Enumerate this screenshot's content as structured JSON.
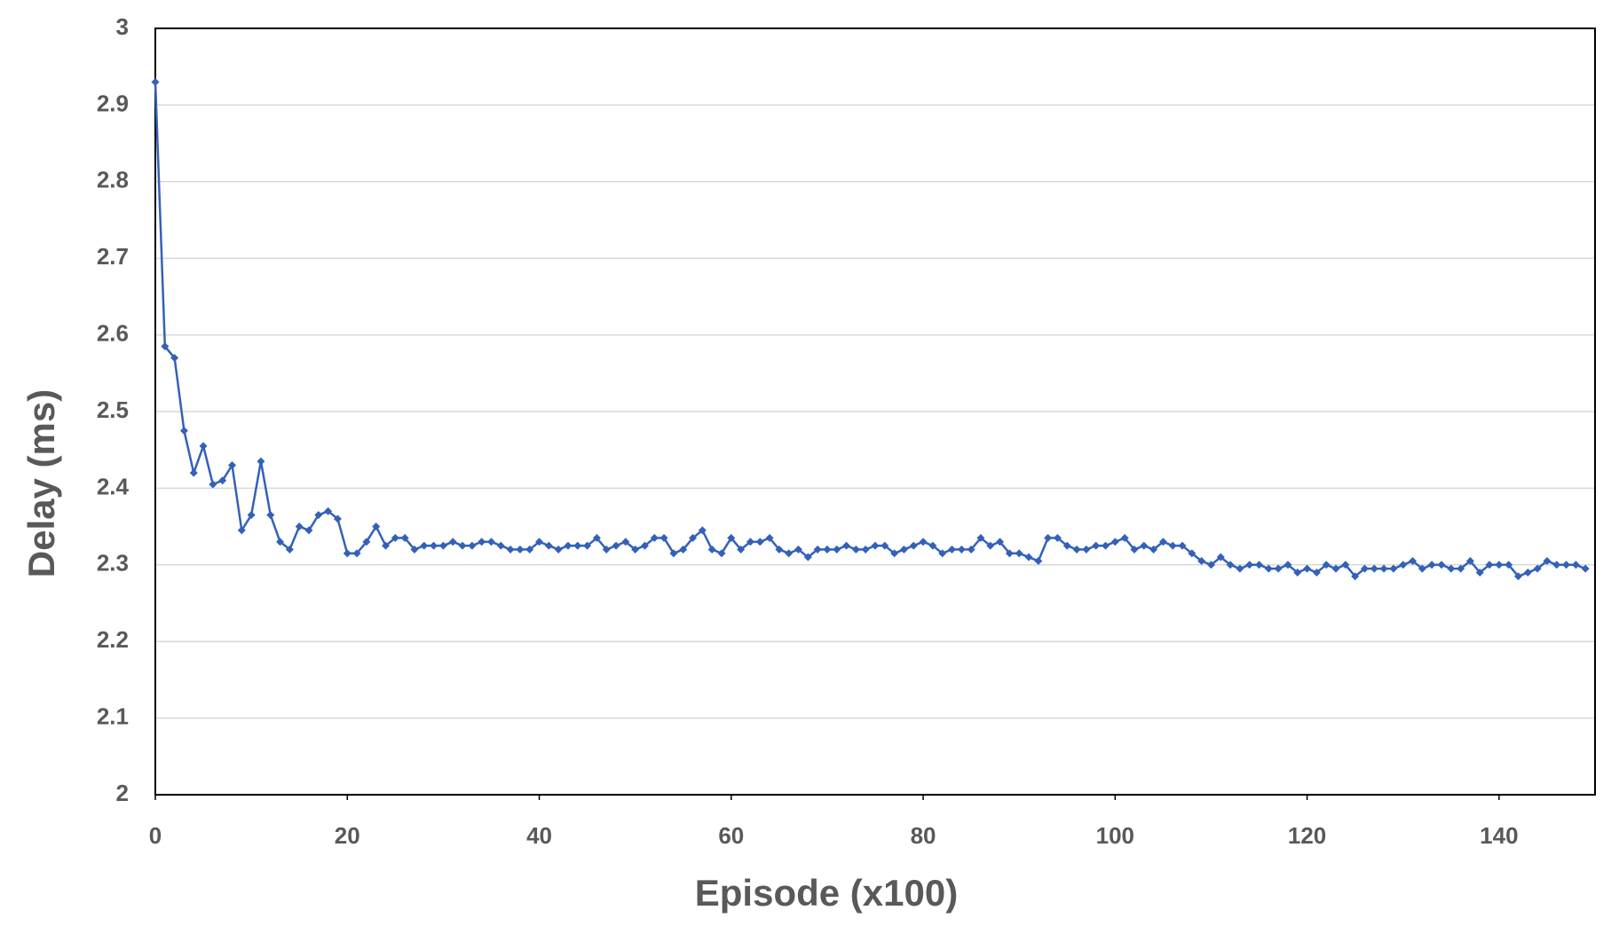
{
  "chart_data": {
    "type": "line",
    "x_label": "Episode (x100)",
    "y_label": "Delay (ms)",
    "x": [
      0,
      1,
      2,
      3,
      4,
      5,
      6,
      7,
      8,
      9,
      10,
      11,
      12,
      13,
      14,
      15,
      16,
      17,
      18,
      19,
      20,
      21,
      22,
      23,
      24,
      25,
      26,
      27,
      28,
      29,
      30,
      31,
      32,
      33,
      34,
      35,
      36,
      37,
      38,
      39,
      40,
      41,
      42,
      43,
      44,
      45,
      46,
      47,
      48,
      49,
      50,
      51,
      52,
      53,
      54,
      55,
      56,
      57,
      58,
      59,
      60,
      61,
      62,
      63,
      64,
      65,
      66,
      67,
      68,
      69,
      70,
      71,
      72,
      73,
      74,
      75,
      76,
      77,
      78,
      79,
      80,
      81,
      82,
      83,
      84,
      85,
      86,
      87,
      88,
      89,
      90,
      91,
      92,
      93,
      94,
      95,
      96,
      97,
      98,
      99,
      100,
      101,
      102,
      103,
      104,
      105,
      106,
      107,
      108,
      109,
      110,
      111,
      112,
      113,
      114,
      115,
      116,
      117,
      118,
      119,
      120,
      121,
      122,
      123,
      124,
      125,
      126,
      127,
      128,
      129,
      130,
      131,
      132,
      133,
      134,
      135,
      136,
      137,
      138,
      139,
      140,
      141,
      142,
      143,
      144,
      145,
      146,
      147,
      148,
      149
    ],
    "series": [
      {
        "name": "Delay",
        "color": "#3461b8",
        "values": [
          2.93,
          2.585,
          2.57,
          2.475,
          2.42,
          2.455,
          2.405,
          2.41,
          2.43,
          2.345,
          2.365,
          2.435,
          2.365,
          2.33,
          2.32,
          2.35,
          2.345,
          2.365,
          2.37,
          2.36,
          2.315,
          2.315,
          2.33,
          2.35,
          2.325,
          2.335,
          2.335,
          2.32,
          2.325,
          2.325,
          2.325,
          2.33,
          2.325,
          2.325,
          2.33,
          2.33,
          2.325,
          2.32,
          2.32,
          2.32,
          2.33,
          2.325,
          2.32,
          2.325,
          2.325,
          2.325,
          2.335,
          2.32,
          2.325,
          2.33,
          2.32,
          2.325,
          2.335,
          2.335,
          2.315,
          2.32,
          2.335,
          2.345,
          2.32,
          2.315,
          2.335,
          2.32,
          2.33,
          2.33,
          2.335,
          2.32,
          2.315,
          2.32,
          2.31,
          2.32,
          2.32,
          2.32,
          2.325,
          2.32,
          2.32,
          2.325,
          2.325,
          2.315,
          2.32,
          2.325,
          2.33,
          2.325,
          2.315,
          2.32,
          2.32,
          2.32,
          2.335,
          2.325,
          2.33,
          2.315,
          2.315,
          2.31,
          2.305,
          2.335,
          2.335,
          2.325,
          2.32,
          2.32,
          2.325,
          2.325,
          2.33,
          2.335,
          2.32,
          2.325,
          2.32,
          2.33,
          2.325,
          2.325,
          2.315,
          2.305,
          2.3,
          2.31,
          2.3,
          2.295,
          2.3,
          2.3,
          2.295,
          2.295,
          2.3,
          2.29,
          2.295,
          2.29,
          2.3,
          2.295,
          2.3,
          2.285,
          2.295,
          2.295,
          2.295,
          2.295,
          2.3,
          2.305,
          2.295,
          2.3,
          2.3,
          2.295,
          2.295,
          2.305,
          2.29,
          2.3,
          2.3,
          2.3,
          2.285,
          2.29,
          2.295,
          2.305,
          2.3,
          2.3,
          2.3,
          2.295
        ]
      }
    ],
    "xlim": [
      0,
      150
    ],
    "xticks": [
      0,
      20,
      40,
      60,
      80,
      100,
      120,
      140
    ],
    "ylim": [
      2,
      3
    ],
    "yticks": [
      2,
      2.1,
      2.2,
      2.3,
      2.4,
      2.5,
      2.6,
      2.7,
      2.8,
      2.9,
      3
    ],
    "grid": true
  }
}
